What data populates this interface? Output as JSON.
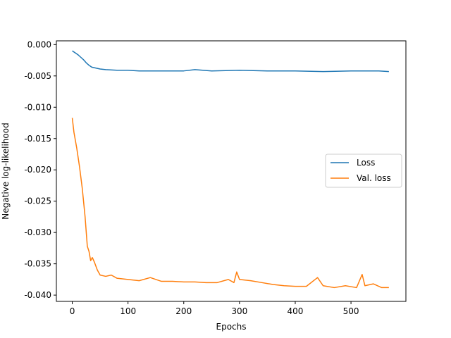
{
  "chart_data": {
    "type": "line",
    "title": "",
    "xlabel": "Epochs",
    "ylabel": "Negative log-likelihood",
    "xlim": [
      -28.5,
      598.5
    ],
    "ylim": [
      -0.041,
      0.0006
    ],
    "xticks": [
      0,
      100,
      200,
      300,
      400,
      500
    ],
    "yticks": [
      0.0,
      -0.005,
      -0.01,
      -0.015,
      -0.02,
      -0.025,
      -0.03,
      -0.035,
      -0.04
    ],
    "ytick_labels": [
      "0.000",
      "-0.005",
      "-0.010",
      "-0.015",
      "-0.020",
      "-0.025",
      "-0.030",
      "-0.035",
      "-0.040"
    ],
    "grid": false,
    "legend_position": "center right",
    "series": [
      {
        "name": "Loss",
        "color": "#1f77b4",
        "points": [
          [
            0,
            -0.001
          ],
          [
            5,
            -0.0013
          ],
          [
            10,
            -0.0016
          ],
          [
            15,
            -0.002
          ],
          [
            20,
            -0.0024
          ],
          [
            25,
            -0.0029
          ],
          [
            30,
            -0.0033
          ],
          [
            35,
            -0.0036
          ],
          [
            40,
            -0.0037
          ],
          [
            50,
            -0.0039
          ],
          [
            60,
            -0.004
          ],
          [
            80,
            -0.0041
          ],
          [
            100,
            -0.0041
          ],
          [
            120,
            -0.0042
          ],
          [
            150,
            -0.0042
          ],
          [
            200,
            -0.0042
          ],
          [
            220,
            -0.004
          ],
          [
            250,
            -0.0042
          ],
          [
            300,
            -0.0041
          ],
          [
            350,
            -0.0042
          ],
          [
            400,
            -0.0042
          ],
          [
            450,
            -0.0043
          ],
          [
            500,
            -0.0042
          ],
          [
            550,
            -0.0042
          ],
          [
            568,
            -0.0043
          ]
        ]
      },
      {
        "name": "Val. loss",
        "color": "#ff7f0e",
        "points": [
          [
            0,
            -0.0117
          ],
          [
            3,
            -0.014
          ],
          [
            8,
            -0.0165
          ],
          [
            13,
            -0.0195
          ],
          [
            18,
            -0.023
          ],
          [
            23,
            -0.0275
          ],
          [
            27,
            -0.0322
          ],
          [
            30,
            -0.033
          ],
          [
            33,
            -0.0345
          ],
          [
            36,
            -0.034
          ],
          [
            40,
            -0.0348
          ],
          [
            45,
            -0.036
          ],
          [
            50,
            -0.0368
          ],
          [
            60,
            -0.037
          ],
          [
            70,
            -0.0368
          ],
          [
            80,
            -0.0373
          ],
          [
            100,
            -0.0375
          ],
          [
            120,
            -0.0377
          ],
          [
            140,
            -0.0372
          ],
          [
            160,
            -0.0378
          ],
          [
            180,
            -0.0378
          ],
          [
            200,
            -0.0379
          ],
          [
            220,
            -0.0379
          ],
          [
            240,
            -0.038
          ],
          [
            260,
            -0.038
          ],
          [
            280,
            -0.0375
          ],
          [
            290,
            -0.038
          ],
          [
            295,
            -0.0363
          ],
          [
            300,
            -0.0375
          ],
          [
            320,
            -0.0377
          ],
          [
            340,
            -0.038
          ],
          [
            360,
            -0.0383
          ],
          [
            380,
            -0.0385
          ],
          [
            400,
            -0.0386
          ],
          [
            420,
            -0.0386
          ],
          [
            440,
            -0.0372
          ],
          [
            450,
            -0.0385
          ],
          [
            470,
            -0.0388
          ],
          [
            490,
            -0.0385
          ],
          [
            510,
            -0.0388
          ],
          [
            520,
            -0.0367
          ],
          [
            525,
            -0.0385
          ],
          [
            540,
            -0.0382
          ],
          [
            555,
            -0.0388
          ],
          [
            568,
            -0.0388
          ]
        ]
      }
    ]
  }
}
